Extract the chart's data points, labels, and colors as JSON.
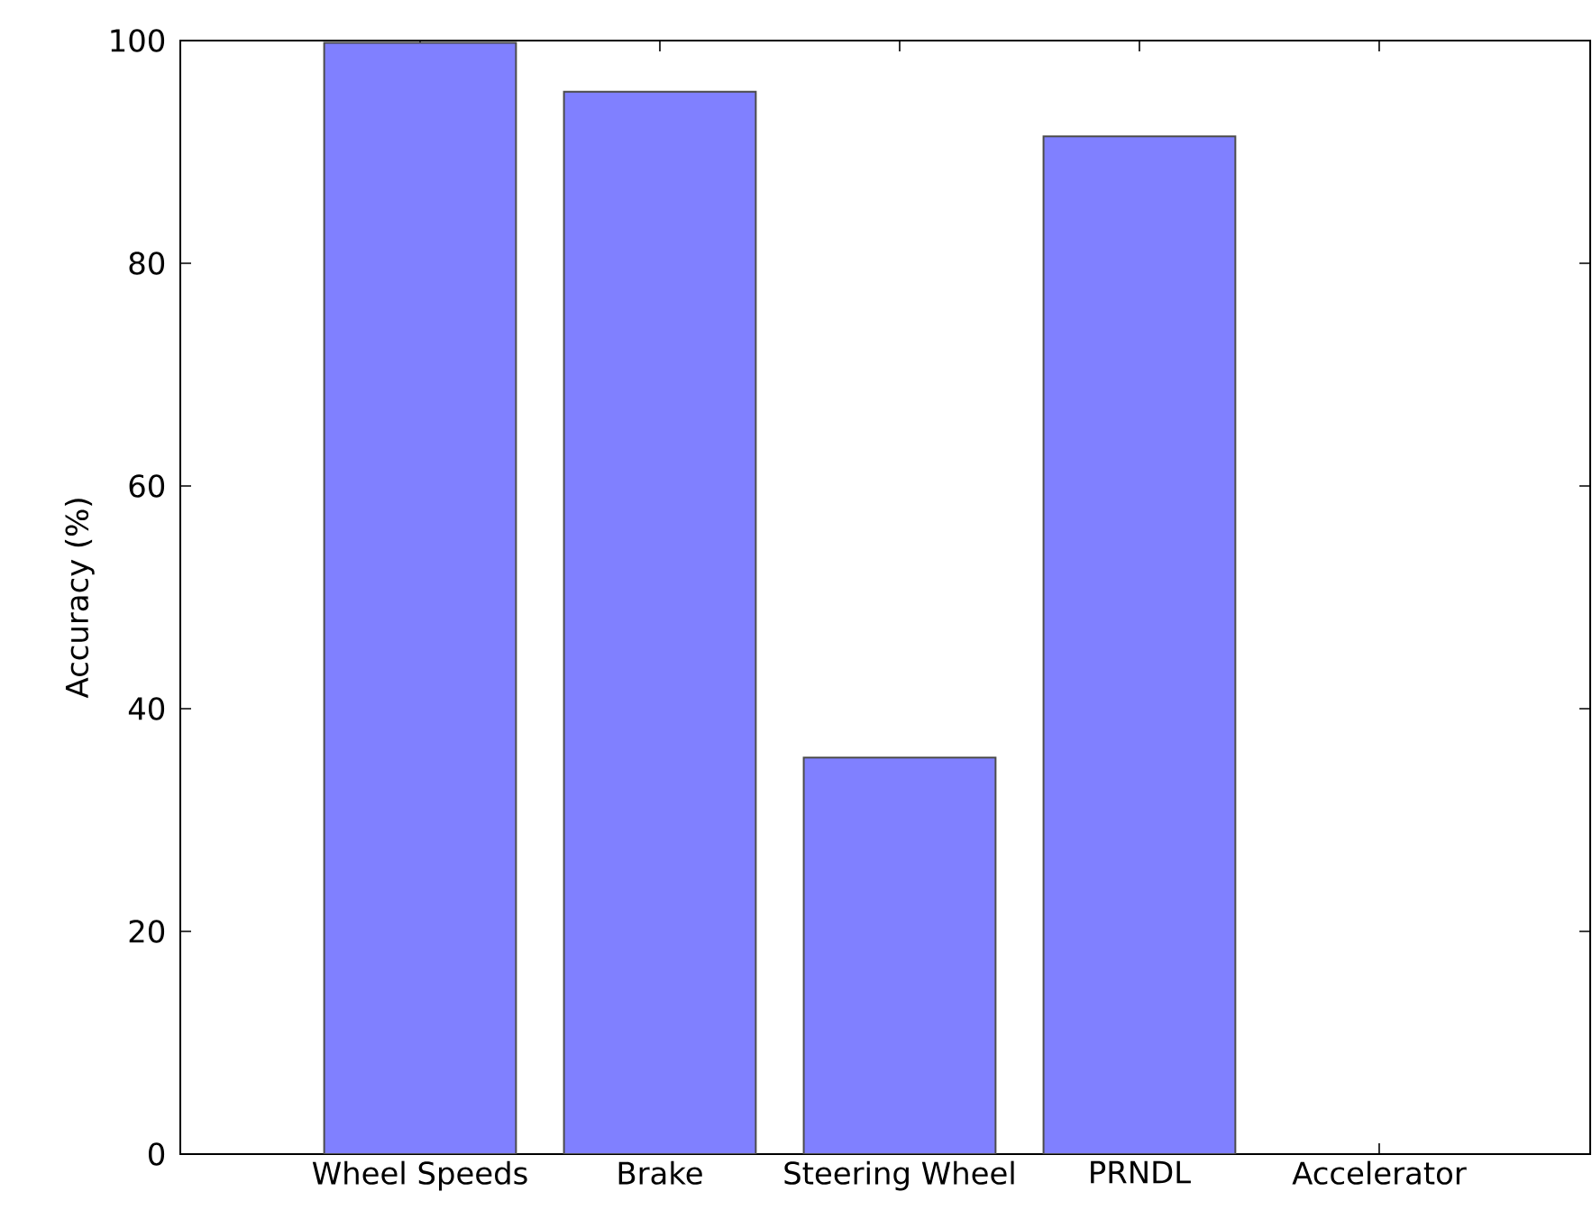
{
  "chart_data": {
    "type": "bar",
    "ylabel": "Accuracy (%)",
    "categories": [
      "Wheel Speeds",
      "Brake",
      "Steering Wheel",
      "PRNDL",
      "Accelerator"
    ],
    "values": [
      99.8,
      95.4,
      35.6,
      91.4,
      null
    ],
    "color": "#8080ff",
    "ylim": [
      0,
      100
    ],
    "yticks": [
      0,
      20,
      40,
      60,
      80,
      100
    ],
    "grid": false
  }
}
